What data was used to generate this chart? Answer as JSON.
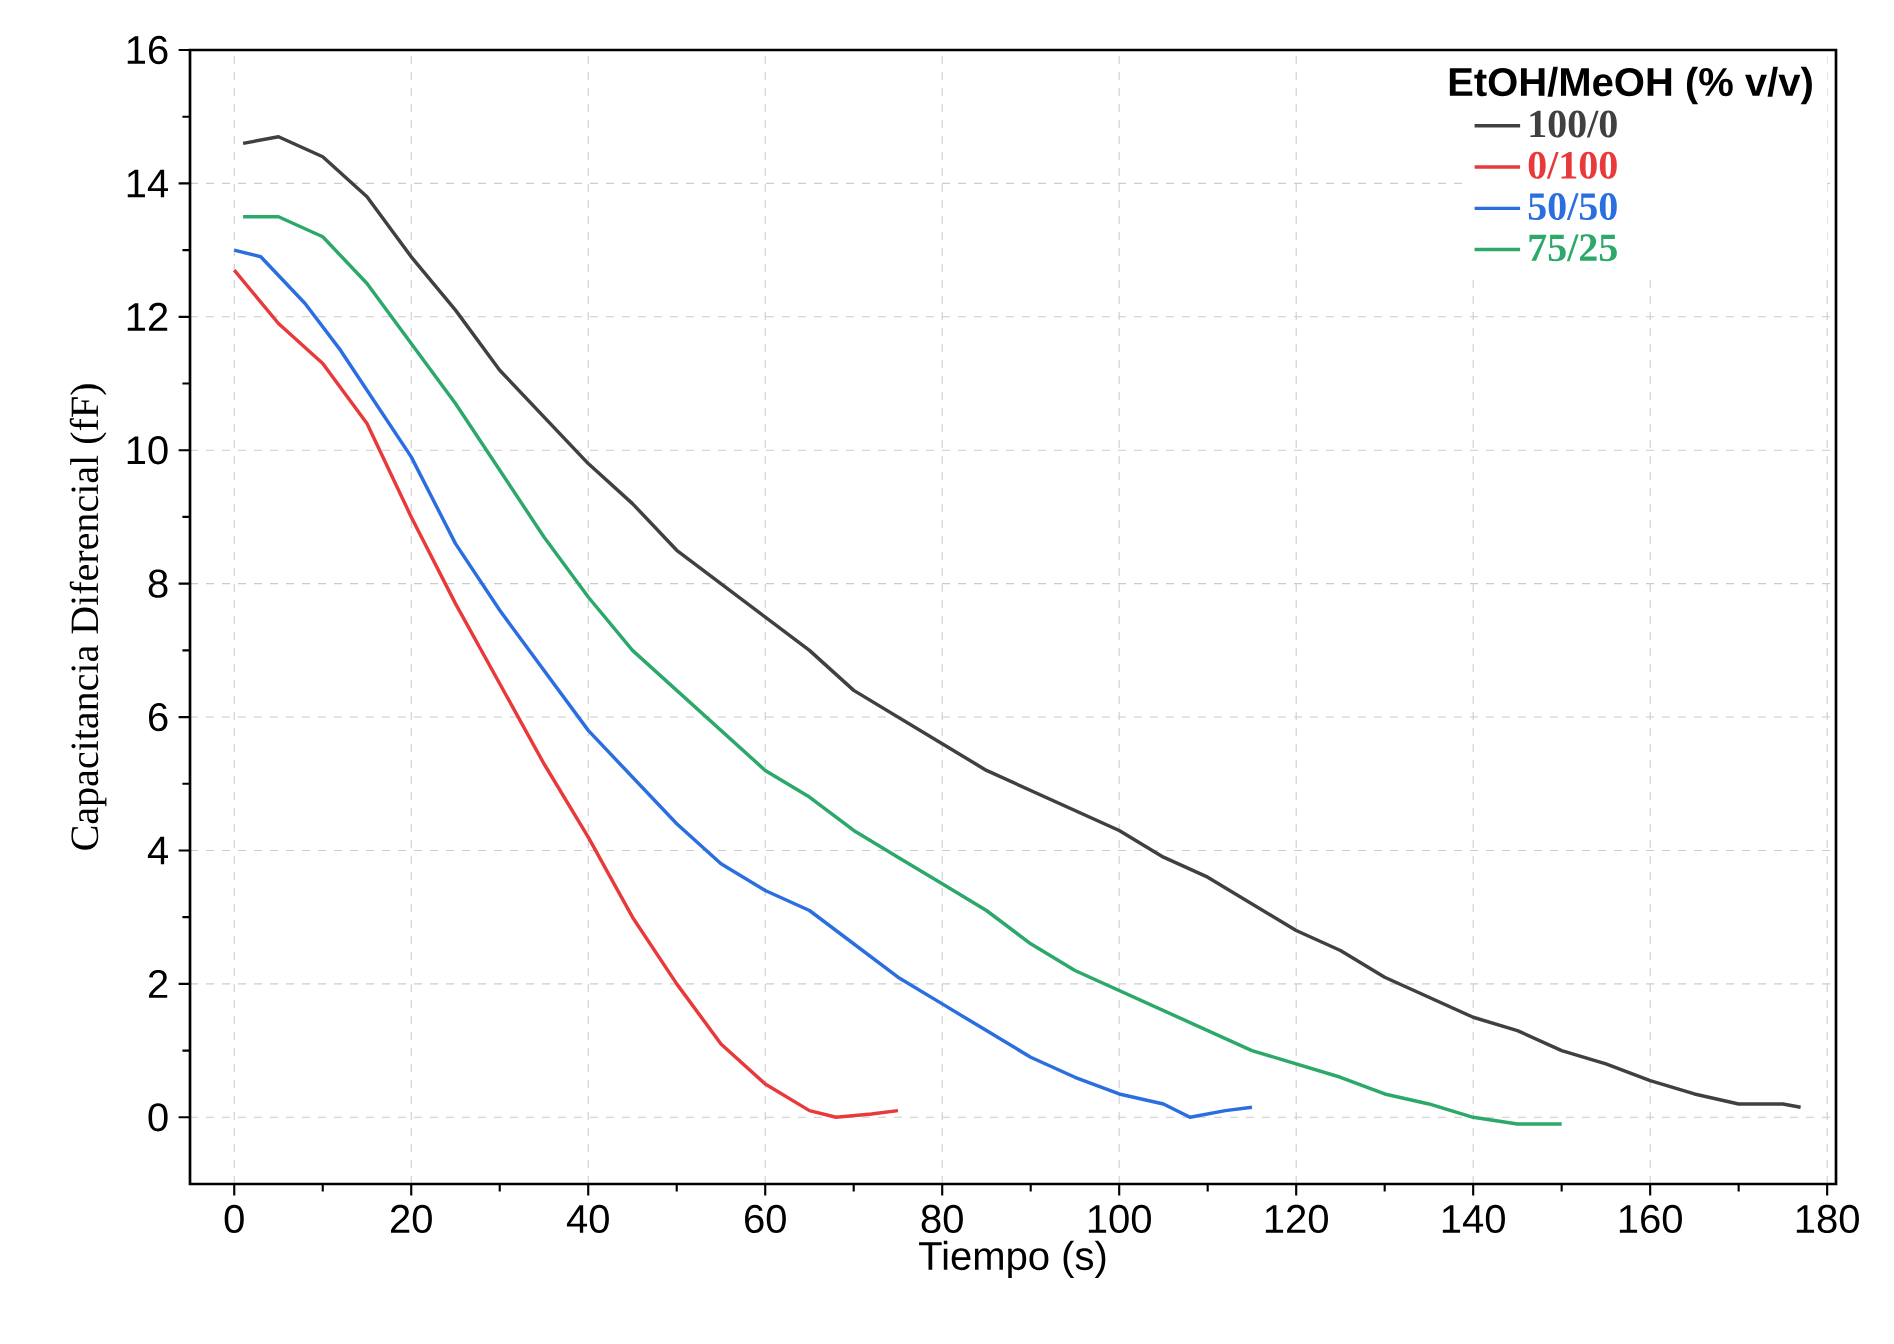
{
  "chart_data": {
    "type": "line",
    "xlabel": "Tiempo (s)",
    "ylabel": "Capacitancia Diferencial (fF)",
    "legend_title": "EtOH/MeOH (% v/v)",
    "legend": "top right",
    "grid": true,
    "marker": "none",
    "line_style": "solid",
    "xlim": [
      -5,
      181
    ],
    "ylim": [
      -1,
      16
    ],
    "xticks": [
      0,
      20,
      40,
      60,
      80,
      100,
      120,
      140,
      160,
      180
    ],
    "yticks": [
      0,
      2,
      4,
      6,
      8,
      10,
      12,
      14,
      16
    ],
    "series": [
      {
        "name": "100/0",
        "color": "#404040",
        "x": [
          1,
          5,
          10,
          15,
          20,
          25,
          30,
          35,
          40,
          45,
          50,
          55,
          60,
          65,
          70,
          75,
          80,
          85,
          90,
          95,
          100,
          105,
          110,
          115,
          120,
          125,
          130,
          135,
          140,
          145,
          150,
          155,
          160,
          165,
          170,
          175,
          177
        ],
        "values": [
          14.6,
          14.7,
          14.4,
          13.8,
          12.9,
          12.1,
          11.2,
          10.5,
          9.8,
          9.2,
          8.5,
          8.0,
          7.5,
          7.0,
          6.4,
          6.0,
          5.6,
          5.2,
          4.9,
          4.6,
          4.3,
          3.9,
          3.6,
          3.2,
          2.8,
          2.5,
          2.1,
          1.8,
          1.5,
          1.3,
          1.0,
          0.8,
          0.55,
          0.35,
          0.2,
          0.2,
          0.15
        ]
      },
      {
        "name": "0/100",
        "color": "#e8393b",
        "x": [
          0,
          5,
          10,
          15,
          20,
          25,
          30,
          35,
          40,
          45,
          50,
          55,
          60,
          65,
          68,
          72,
          75
        ],
        "values": [
          12.7,
          11.9,
          11.3,
          10.4,
          9.0,
          7.7,
          6.5,
          5.3,
          4.2,
          3.0,
          2.0,
          1.1,
          0.5,
          0.1,
          0.0,
          0.05,
          0.1
        ]
      },
      {
        "name": "50/50",
        "color": "#2a6ee0",
        "x": [
          0,
          3,
          8,
          12,
          15,
          20,
          25,
          30,
          35,
          40,
          45,
          50,
          55,
          60,
          65,
          70,
          75,
          80,
          85,
          90,
          95,
          100,
          105,
          108,
          112,
          115
        ],
        "values": [
          13.0,
          12.9,
          12.2,
          11.5,
          10.9,
          9.9,
          8.6,
          7.6,
          6.7,
          5.8,
          5.1,
          4.4,
          3.8,
          3.4,
          3.1,
          2.6,
          2.1,
          1.7,
          1.3,
          0.9,
          0.6,
          0.35,
          0.2,
          0.0,
          0.1,
          0.15
        ]
      },
      {
        "name": "75/25",
        "color": "#2ba86a",
        "x": [
          1,
          5,
          10,
          15,
          20,
          25,
          30,
          35,
          40,
          45,
          50,
          55,
          60,
          65,
          70,
          75,
          80,
          85,
          90,
          95,
          100,
          105,
          110,
          115,
          120,
          125,
          130,
          135,
          140,
          145,
          150
        ],
        "values": [
          13.5,
          13.5,
          13.2,
          12.5,
          11.6,
          10.7,
          9.7,
          8.7,
          7.8,
          7.0,
          6.4,
          5.8,
          5.2,
          4.8,
          4.3,
          3.9,
          3.5,
          3.1,
          2.6,
          2.2,
          1.9,
          1.6,
          1.3,
          1.0,
          0.8,
          0.6,
          0.35,
          0.2,
          0.0,
          -0.1,
          -0.1
        ]
      }
    ]
  }
}
